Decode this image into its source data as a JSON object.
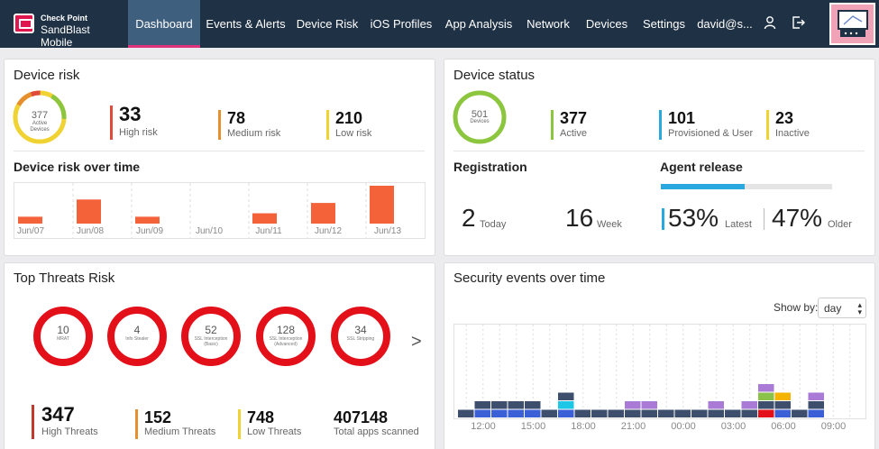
{
  "nav": {
    "logo_line1": "Check Point",
    "logo_line2": "SandBlast Mobile",
    "items": [
      "Dashboard",
      "Events & Alerts",
      "Device Risk",
      "iOS Profiles",
      "App Analysis",
      "Network",
      "Devices",
      "Settings"
    ],
    "user": "david@s..."
  },
  "device_risk": {
    "title": "Device risk",
    "donut_value": "377",
    "donut_label1": "Active",
    "donut_label2": "Devices",
    "high": {
      "value": "33",
      "label": "High risk"
    },
    "medium": {
      "value": "78",
      "label": "Medium risk"
    },
    "low": {
      "value": "210",
      "label": "Low risk"
    },
    "over_time_title": "Device risk over time",
    "dates": [
      "Jun/07",
      "Jun/08",
      "Jun/09",
      "Jun/10",
      "Jun/11",
      "Jun/12",
      "Jun/13"
    ]
  },
  "device_status": {
    "title": "Device status",
    "donut_value": "501",
    "donut_label": "Devices",
    "active": {
      "value": "377",
      "label": "Active"
    },
    "provisioned": {
      "value": "101",
      "label": "Provisioned & User"
    },
    "inactive": {
      "value": "23",
      "label": "Inactive"
    },
    "registration_title": "Registration",
    "today_value": "2",
    "today_label": "Today",
    "week_value": "16",
    "week_label": "Week",
    "agent_title": "Agent release",
    "agent_latest_fraction": 0.53,
    "latest_value": "53%",
    "latest_label": "Latest",
    "older_value": "47%",
    "older_label": "Older"
  },
  "top_threats": {
    "title": "Top Threats Risk",
    "threats": [
      {
        "value": "10",
        "label": "MRAT"
      },
      {
        "value": "4",
        "label": "Info Stealer"
      },
      {
        "value": "52",
        "label": "SSL Interception (Basic)"
      },
      {
        "value": "128",
        "label": "SSL Interception (Advanced)"
      },
      {
        "value": "34",
        "label": "SSL Stripping"
      }
    ],
    "next": ">",
    "high": {
      "value": "347",
      "label": "High Threats"
    },
    "medium": {
      "value": "152",
      "label": "Medium Threats"
    },
    "low": {
      "value": "748",
      "label": "Low Threats"
    },
    "total": {
      "value": "407148",
      "label": "Total apps scanned"
    }
  },
  "security_events": {
    "title": "Security events over time",
    "show_by_label": "Show by:",
    "show_by_value": "day",
    "times": [
      "12:00",
      "15:00",
      "18:00",
      "21:00",
      "00:00",
      "03:00",
      "06:00",
      "09:00"
    ]
  },
  "colors": {
    "high": "#c0392b",
    "medium": "#e58f2e",
    "low": "#f0d233",
    "active": "#8cc63f",
    "provisioned": "#29a8e0",
    "bar": "#f4623a"
  },
  "chart_data": [
    {
      "type": "bar",
      "title": "Device risk over time",
      "categories": [
        "Jun/07",
        "Jun/08",
        "Jun/09",
        "Jun/10",
        "Jun/11",
        "Jun/12",
        "Jun/13"
      ],
      "values": [
        2,
        7,
        2,
        0,
        3,
        6,
        11
      ]
    },
    {
      "type": "bar",
      "title": "Security events over time",
      "categories": [
        "12:00",
        "13:00",
        "14:00",
        "15:00",
        "16:00",
        "17:00",
        "18:00",
        "19:00",
        "20:00",
        "21:00",
        "22:00",
        "23:00",
        "00:00",
        "01:00",
        "02:00",
        "03:00",
        "04:00",
        "05:00",
        "06:00",
        "07:00",
        "08:00",
        "09:00",
        "10:00"
      ],
      "series": [
        {
          "color": "#3a5fd6",
          "values": [
            0,
            1,
            1,
            1,
            1,
            0,
            1,
            0,
            0,
            0,
            0,
            0,
            0,
            0,
            0,
            0,
            0,
            0,
            0,
            1,
            0,
            1,
            0
          ]
        },
        {
          "color": "#1fc7e6",
          "values": [
            0,
            0,
            0,
            0,
            0,
            0,
            1,
            0,
            0,
            0,
            0,
            0,
            0,
            0,
            0,
            0,
            0,
            0,
            0,
            0,
            0,
            0,
            0
          ]
        },
        {
          "color": "#e3101a",
          "values": [
            0,
            0,
            0,
            0,
            0,
            0,
            0,
            0,
            0,
            0,
            0,
            0,
            0,
            0,
            0,
            0,
            0,
            0,
            1,
            0,
            0,
            0,
            0
          ]
        },
        {
          "color": "#3d4f6d",
          "values": [
            1,
            1,
            1,
            1,
            1,
            1,
            1,
            1,
            1,
            1,
            1,
            1,
            1,
            1,
            1,
            1,
            1,
            1,
            1,
            1,
            1,
            1,
            0
          ]
        },
        {
          "color": "#8bc34a",
          "values": [
            0,
            0,
            0,
            0,
            0,
            0,
            0,
            0,
            0,
            0,
            0,
            0,
            0,
            0,
            0,
            0,
            0,
            0,
            1,
            0,
            0,
            0,
            0
          ]
        },
        {
          "color": "#a97ad6",
          "values": [
            0,
            0,
            0,
            0,
            0,
            0,
            0,
            0,
            0,
            0,
            1,
            1,
            0,
            0,
            0,
            1,
            0,
            1,
            1,
            0,
            0,
            1,
            0
          ]
        },
        {
          "color": "#f5b400",
          "values": [
            0,
            0,
            0,
            0,
            0,
            0,
            0,
            0,
            0,
            0,
            0,
            0,
            0,
            0,
            0,
            0,
            0,
            0,
            0,
            1,
            0,
            0,
            0
          ]
        }
      ]
    }
  ]
}
